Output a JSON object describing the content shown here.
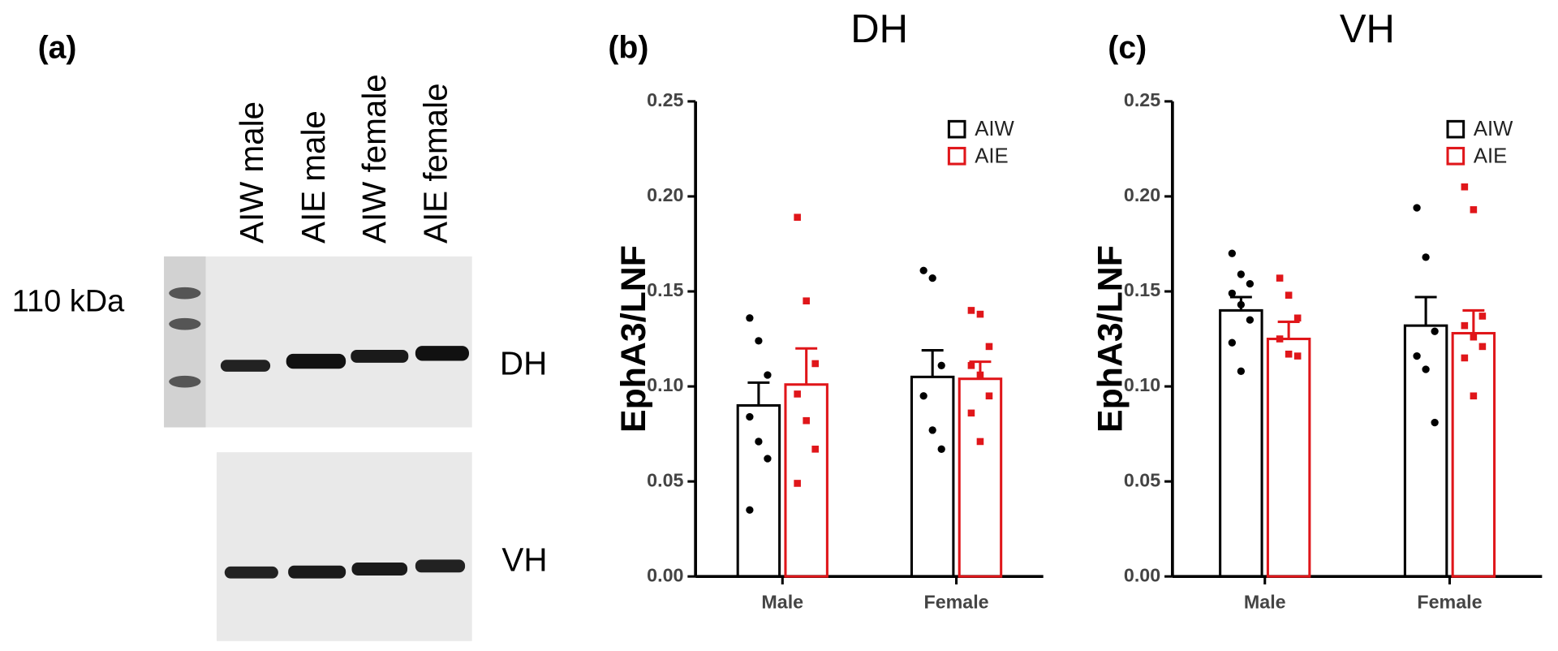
{
  "panel_a": {
    "label": "(a)",
    "lanes": [
      "AIW male",
      "AIE male",
      "AIW female",
      "AIE female"
    ],
    "marker": "110 kDa",
    "blots": [
      "DH",
      "VH"
    ]
  },
  "chart_data": [
    {
      "type": "bar",
      "panel_label": "(b)",
      "title": "DH",
      "y_label": "EphA3/LNF",
      "categories": [
        "Male",
        "Female"
      ],
      "series": [
        {
          "name": "AIW",
          "color": "#000000",
          "values": [
            0.09,
            0.105
          ],
          "errors": [
            0.012,
            0.014
          ],
          "points": [
            [
              0.136,
              0.124,
              0.106,
              0.084,
              0.071,
              0.062,
              0.035
            ],
            [
              0.161,
              0.157,
              0.111,
              0.095,
              0.077,
              0.067
            ]
          ]
        },
        {
          "name": "AIE",
          "color": "#e0161a",
          "values": [
            0.101,
            0.104
          ],
          "errors": [
            0.019,
            0.009
          ],
          "points": [
            [
              0.189,
              0.145,
              0.112,
              0.096,
              0.082,
              0.067,
              0.049
            ],
            [
              0.14,
              0.138,
              0.121,
              0.111,
              0.106,
              0.095,
              0.086,
              0.071
            ]
          ]
        }
      ],
      "ylim": [
        0,
        0.25
      ],
      "yticks": [
        {
          "value": 0,
          "label": "0.00"
        },
        {
          "value": 0.05,
          "label": "0.05"
        },
        {
          "value": 0.1,
          "label": "0.10"
        },
        {
          "value": 0.15,
          "label": "0.15"
        },
        {
          "value": 0.2,
          "label": "0.20"
        },
        {
          "value": 0.25,
          "label": "0.25"
        }
      ],
      "legend": "upper right"
    },
    {
      "type": "bar",
      "panel_label": "(c)",
      "title": "VH",
      "y_label": "EphA3/LNF",
      "categories": [
        "Male",
        "Female"
      ],
      "series": [
        {
          "name": "AIW",
          "color": "#000000",
          "values": [
            0.14,
            0.132
          ],
          "errors": [
            0.007,
            0.015
          ],
          "points": [
            [
              0.17,
              0.159,
              0.154,
              0.149,
              0.143,
              0.135,
              0.123,
              0.108
            ],
            [
              0.194,
              0.168,
              0.129,
              0.116,
              0.109,
              0.081
            ]
          ]
        },
        {
          "name": "AIE",
          "color": "#e0161a",
          "values": [
            0.125,
            0.128
          ],
          "errors": [
            0.009,
            0.012
          ],
          "points": [
            [
              0.157,
              0.148,
              0.136,
              0.125,
              0.117,
              0.116
            ],
            [
              0.205,
              0.193,
              0.137,
              0.132,
              0.126,
              0.121,
              0.115,
              0.095
            ]
          ]
        }
      ],
      "ylim": [
        0,
        0.25
      ],
      "yticks": [
        {
          "value": 0,
          "label": "0.00"
        },
        {
          "value": 0.05,
          "label": "0.05"
        },
        {
          "value": 0.1,
          "label": "0.10"
        },
        {
          "value": 0.15,
          "label": "0.15"
        },
        {
          "value": 0.2,
          "label": "0.20"
        },
        {
          "value": 0.25,
          "label": "0.25"
        }
      ],
      "legend": "upper right"
    }
  ]
}
